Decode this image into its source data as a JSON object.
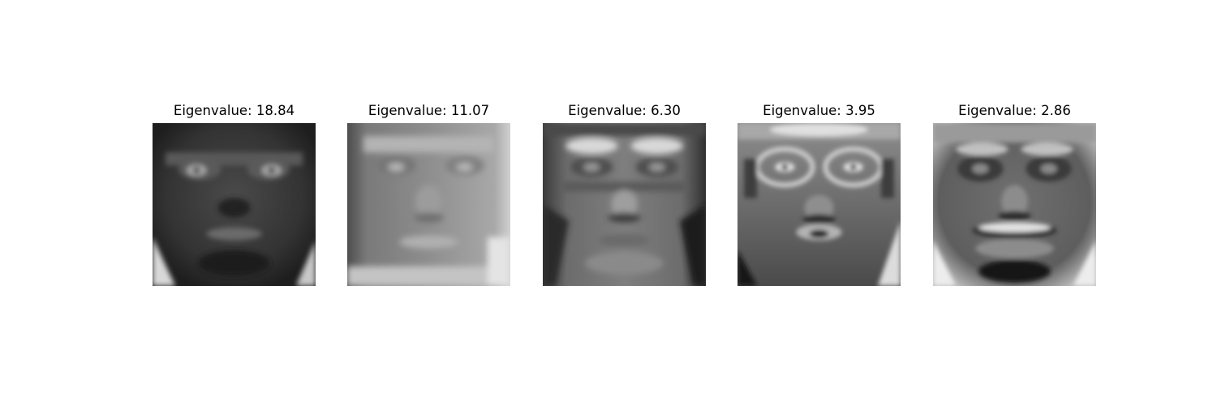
{
  "figure": {
    "panels": [
      {
        "title": "Eigenvalue: 18.84",
        "image": "eigenface-1"
      },
      {
        "title": "Eigenvalue: 11.07",
        "image": "eigenface-2"
      },
      {
        "title": "Eigenvalue: 6.30",
        "image": "eigenface-3"
      },
      {
        "title": "Eigenvalue: 3.95",
        "image": "eigenface-4"
      },
      {
        "title": "Eigenvalue: 2.86",
        "image": "eigenface-5"
      }
    ]
  }
}
